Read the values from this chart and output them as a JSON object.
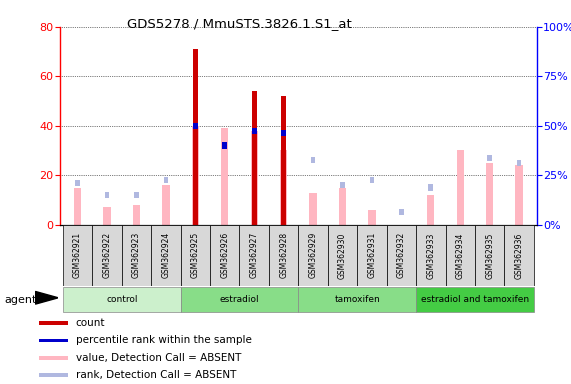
{
  "title": "GDS5278 / MmuSTS.3826.1.S1_at",
  "samples": [
    "GSM362921",
    "GSM362922",
    "GSM362923",
    "GSM362924",
    "GSM362925",
    "GSM362926",
    "GSM362927",
    "GSM362928",
    "GSM362929",
    "GSM362930",
    "GSM362931",
    "GSM362932",
    "GSM362933",
    "GSM362934",
    "GSM362935",
    "GSM362936"
  ],
  "count": [
    0,
    0,
    0,
    0,
    71,
    0,
    54,
    52,
    0,
    0,
    0,
    0,
    0,
    0,
    0,
    0
  ],
  "percentile_rank": [
    0,
    0,
    0,
    0,
    40,
    32,
    38,
    37,
    0,
    0,
    0,
    0,
    0,
    0,
    0,
    0
  ],
  "value_absent": [
    15,
    7,
    8,
    16,
    40,
    39,
    38,
    30,
    13,
    15,
    6,
    0,
    12,
    30,
    25,
    24
  ],
  "rank_absent": [
    17,
    12,
    12,
    18,
    0,
    0,
    0,
    0,
    26,
    16,
    18,
    5,
    15,
    0,
    27,
    25
  ],
  "groups": [
    {
      "name": "control",
      "start": 0,
      "end": 3,
      "color": "#ccf0cc"
    },
    {
      "name": "estradiol",
      "start": 4,
      "end": 7,
      "color": "#88dd88"
    },
    {
      "name": "tamoxifen",
      "start": 8,
      "end": 11,
      "color": "#88dd88"
    },
    {
      "name": "estradiol and tamoxifen",
      "start": 12,
      "end": 15,
      "color": "#44cc44"
    }
  ],
  "ylim_left": [
    0,
    80
  ],
  "ylim_right": [
    0,
    100
  ],
  "yticks_left": [
    0,
    20,
    40,
    60,
    80
  ],
  "yticks_right": [
    0,
    25,
    50,
    75,
    100
  ],
  "color_count": "#cc0000",
  "color_rank": "#0000cc",
  "color_value_absent": "#ffb6c1",
  "color_rank_absent": "#b0b8e0",
  "bar_width": 0.35,
  "count_bar_width": 0.18,
  "absent_bar_width": 0.25
}
